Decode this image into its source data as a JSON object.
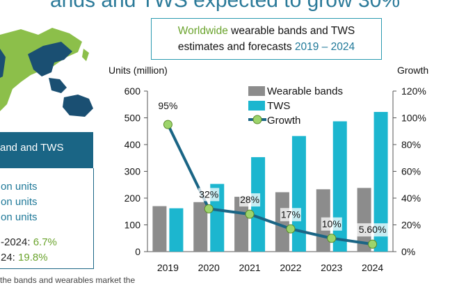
{
  "headline": "ands and TWS expected to grow 30%",
  "title": {
    "green_word": "Worldwide",
    "rest_line1": " wearable bands and TWS",
    "line2_prefix": "estimates and forecasts ",
    "years": "2019 – 2024"
  },
  "side_panel": {
    "header": "and and TWS",
    "unit_lines": [
      "on units",
      "on units",
      "on units"
    ],
    "growth_lines": [
      {
        "label": "-2024: ",
        "value": "6.7%"
      },
      {
        "label": "24: ",
        "value": "19.8%"
      }
    ],
    "footer_text": "the bands and wearables market the"
  },
  "colors": {
    "bands": "#8c8c8c",
    "tws": "#1cb6cf",
    "growth_line": "#1a6585",
    "growth_marker": "#9dd46b",
    "accent_green": "#6aa32c",
    "accent_blue": "#1e7898"
  },
  "chart_data": {
    "type": "bar",
    "title": "Worldwide wearable bands and TWS estimates and forecasts 2019 – 2024",
    "ylabel": "Units (million)",
    "y2label": "Growth",
    "categories": [
      "2019",
      "2020",
      "2021",
      "2022",
      "2023",
      "2024"
    ],
    "ylim": [
      0,
      600
    ],
    "y2lim": [
      0,
      120
    ],
    "yticks": [
      "0",
      "100",
      "200",
      "300",
      "400",
      "500",
      "600"
    ],
    "y2ticks": [
      "0%",
      "20%",
      "40%",
      "60%",
      "80%",
      "100%",
      "120%"
    ],
    "series": [
      {
        "name": "Wearable bands",
        "kind": "bar",
        "values": [
          170,
          185,
          205,
          222,
          233,
          238
        ]
      },
      {
        "name": "TWS",
        "kind": "bar",
        "values": [
          162,
          253,
          353,
          432,
          487,
          522
        ]
      },
      {
        "name": "Growth",
        "kind": "line",
        "axis": "right",
        "values": [
          95,
          32,
          28,
          17,
          10,
          5.6
        ],
        "labels": [
          "95%",
          "32%",
          "28%",
          "17%",
          "10%",
          "5.60%"
        ]
      }
    ],
    "legend": [
      "Wearable bands",
      "TWS",
      "Growth"
    ],
    "legend_position": "top-right"
  }
}
